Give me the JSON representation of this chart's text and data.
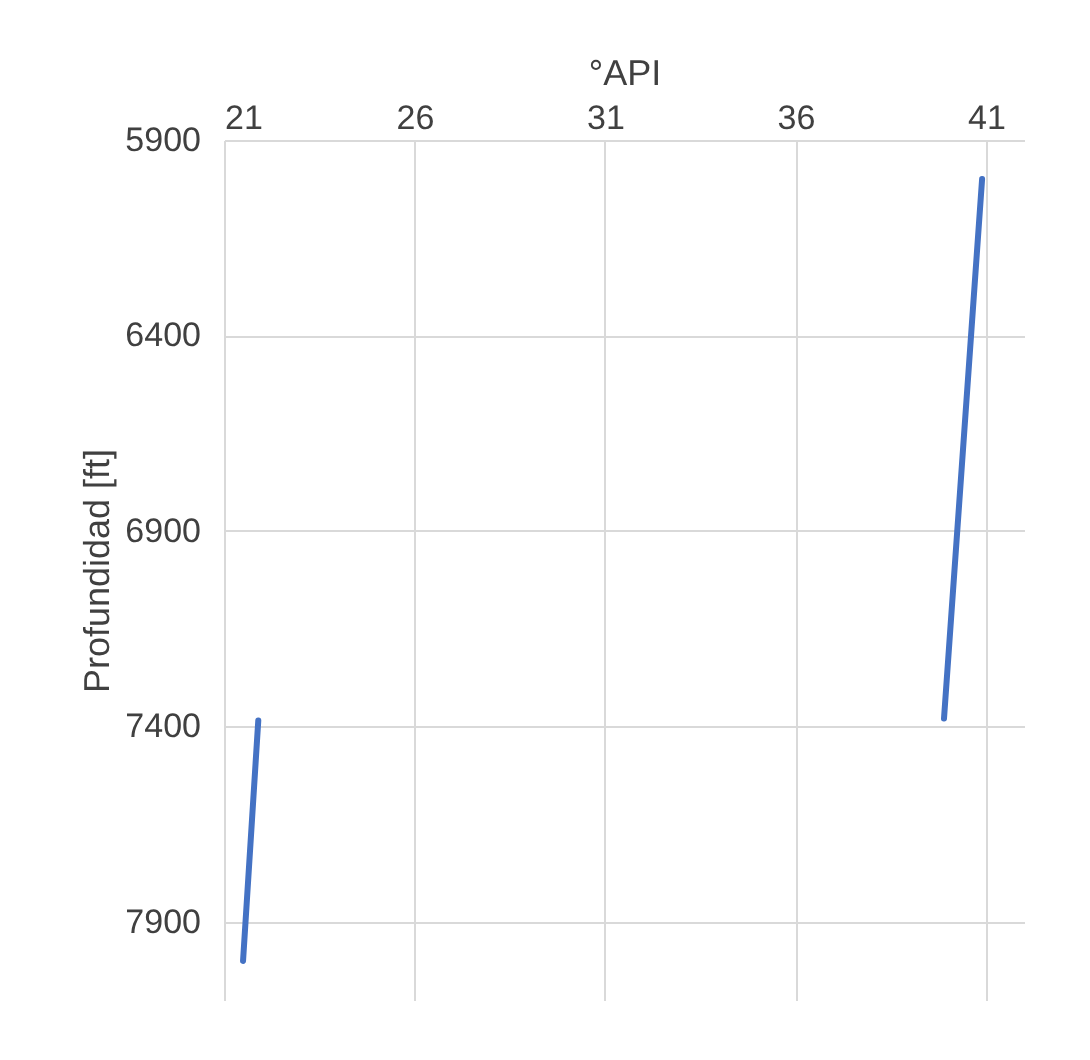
{
  "chart_data": {
    "type": "line",
    "xlabel": "°API",
    "ylabel": "Profundidad [ft]",
    "series": [
      {
        "color": "#4472c4",
        "x": [
          21.9,
          21.5
        ],
        "values": [
          7385,
          8000
        ]
      },
      {
        "color": "#4472c4",
        "x": [
          40.9,
          39.9
        ],
        "values": [
          6000,
          7380
        ]
      }
    ],
    "xlim": [
      21,
      42
    ],
    "xticks": [
      21,
      26,
      31,
      36,
      41
    ],
    "ylim": [
      8100,
      5900
    ],
    "yticks": [
      5900,
      6400,
      6900,
      7400,
      7900
    ],
    "grid": true,
    "marker": "none",
    "line_style": "solid"
  }
}
